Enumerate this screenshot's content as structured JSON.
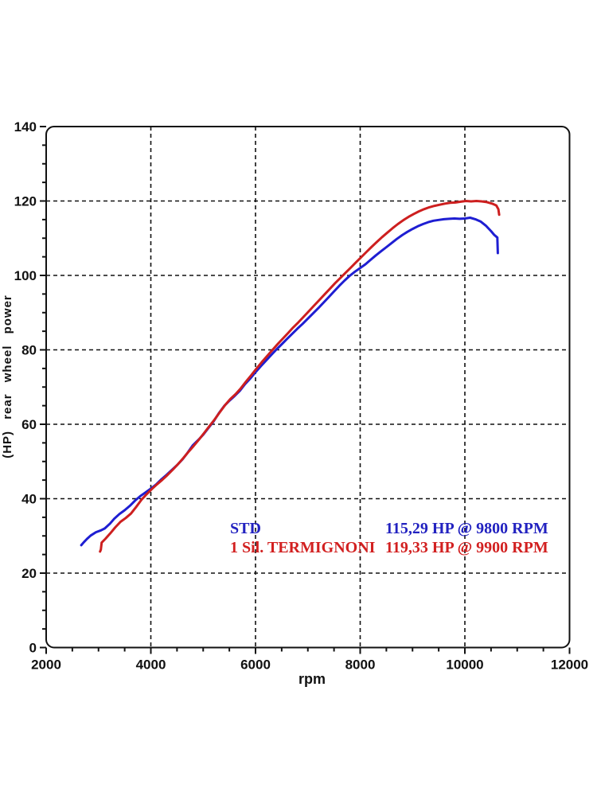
{
  "chart_data": {
    "type": "line",
    "title": "",
    "xlabel": "rpm",
    "ylabel": "(HP) rear wheel power",
    "xlim": [
      2000,
      12000
    ],
    "ylim": [
      0,
      140
    ],
    "x_major_ticks": [
      2000,
      4000,
      6000,
      8000,
      10000,
      12000
    ],
    "x_tick_labels": [
      "2000",
      "4000",
      "6000",
      "8000",
      "10000",
      "12000"
    ],
    "x_minor_step": 500,
    "y_major_ticks": [
      0,
      20,
      40,
      60,
      80,
      100,
      120,
      140
    ],
    "y_tick_labels": [
      "0",
      "20",
      "40",
      "60",
      "80",
      "100",
      "120",
      "140"
    ],
    "y_minor_step": 5,
    "grid": {
      "style": "dashed",
      "color": "#111111",
      "horizontal_at": [
        20,
        40,
        60,
        80,
        100,
        120
      ],
      "vertical_at": [
        4000,
        6000,
        8000,
        10000
      ]
    },
    "legend_position": "inside lower-right",
    "series": [
      {
        "name": "STD",
        "color": "#1e1ed2",
        "peak_label": "115,29 HP @ 9800 RPM",
        "points": [
          [
            2670,
            27.5
          ],
          [
            2720,
            28.3
          ],
          [
            2780,
            29.2
          ],
          [
            2850,
            30.1
          ],
          [
            2950,
            31.0
          ],
          [
            3050,
            31.5
          ],
          [
            3120,
            32.0
          ],
          [
            3220,
            33.3
          ],
          [
            3300,
            34.6
          ],
          [
            3400,
            35.9
          ],
          [
            3500,
            36.9
          ],
          [
            3600,
            38.1
          ],
          [
            3700,
            39.5
          ],
          [
            3800,
            40.7
          ],
          [
            3900,
            41.7
          ],
          [
            4000,
            42.7
          ],
          [
            4100,
            43.8
          ],
          [
            4200,
            45.2
          ],
          [
            4300,
            46.4
          ],
          [
            4400,
            47.7
          ],
          [
            4500,
            49.0
          ],
          [
            4600,
            50.5
          ],
          [
            4700,
            52.3
          ],
          [
            4800,
            54.3
          ],
          [
            4900,
            55.7
          ],
          [
            5000,
            57.2
          ],
          [
            5100,
            59.0
          ],
          [
            5200,
            60.8
          ],
          [
            5300,
            63.0
          ],
          [
            5400,
            64.9
          ],
          [
            5500,
            66.3
          ],
          [
            5600,
            67.6
          ],
          [
            5700,
            69.0
          ],
          [
            5800,
            70.8
          ],
          [
            5900,
            72.3
          ],
          [
            6000,
            74.0
          ],
          [
            6100,
            75.6
          ],
          [
            6200,
            77.1
          ],
          [
            6300,
            78.6
          ],
          [
            6400,
            80.1
          ],
          [
            6500,
            81.5
          ],
          [
            6600,
            82.9
          ],
          [
            6700,
            84.3
          ],
          [
            6800,
            85.7
          ],
          [
            6900,
            87.0
          ],
          [
            7000,
            88.4
          ],
          [
            7100,
            89.8
          ],
          [
            7200,
            91.2
          ],
          [
            7300,
            92.7
          ],
          [
            7400,
            94.2
          ],
          [
            7500,
            95.7
          ],
          [
            7600,
            97.2
          ],
          [
            7700,
            98.6
          ],
          [
            7800,
            99.9
          ],
          [
            7900,
            101.0
          ],
          [
            8000,
            102.0
          ],
          [
            8100,
            103.0
          ],
          [
            8200,
            104.2
          ],
          [
            8300,
            105.4
          ],
          [
            8400,
            106.5
          ],
          [
            8500,
            107.6
          ],
          [
            8600,
            108.7
          ],
          [
            8700,
            109.8
          ],
          [
            8800,
            110.8
          ],
          [
            8900,
            111.7
          ],
          [
            9000,
            112.5
          ],
          [
            9100,
            113.2
          ],
          [
            9200,
            113.8
          ],
          [
            9300,
            114.3
          ],
          [
            9400,
            114.7
          ],
          [
            9500,
            114.9
          ],
          [
            9600,
            115.1
          ],
          [
            9700,
            115.2
          ],
          [
            9800,
            115.3
          ],
          [
            9900,
            115.2
          ],
          [
            10000,
            115.3
          ],
          [
            10100,
            115.5
          ],
          [
            10200,
            115.1
          ],
          [
            10300,
            114.5
          ],
          [
            10400,
            113.4
          ],
          [
            10500,
            111.9
          ],
          [
            10560,
            110.9
          ],
          [
            10610,
            110.3
          ],
          [
            10620,
            110.2
          ],
          [
            10630,
            106.0
          ]
        ]
      },
      {
        "name": "1 Sil. TERMIGNONI",
        "color": "#cd1f1f",
        "peak_label": "119,33 HP @ 9900 RPM",
        "points": [
          [
            3030,
            25.8
          ],
          [
            3045,
            26.3
          ],
          [
            3060,
            28.2
          ],
          [
            3130,
            29.2
          ],
          [
            3220,
            30.6
          ],
          [
            3320,
            32.3
          ],
          [
            3420,
            33.8
          ],
          [
            3520,
            34.8
          ],
          [
            3620,
            36.0
          ],
          [
            3720,
            37.8
          ],
          [
            3820,
            39.7
          ],
          [
            3920,
            41.2
          ],
          [
            4020,
            42.6
          ],
          [
            4120,
            43.9
          ],
          [
            4220,
            45.1
          ],
          [
            4320,
            46.4
          ],
          [
            4420,
            47.8
          ],
          [
            4520,
            49.3
          ],
          [
            4620,
            50.9
          ],
          [
            4720,
            52.6
          ],
          [
            4820,
            54.2
          ],
          [
            4920,
            55.9
          ],
          [
            5020,
            57.7
          ],
          [
            5120,
            59.5
          ],
          [
            5220,
            61.3
          ],
          [
            5320,
            63.3
          ],
          [
            5420,
            65.2
          ],
          [
            5520,
            66.8
          ],
          [
            5620,
            68.1
          ],
          [
            5720,
            69.7
          ],
          [
            5820,
            71.5
          ],
          [
            5920,
            73.2
          ],
          [
            6020,
            75.0
          ],
          [
            6120,
            76.7
          ],
          [
            6220,
            78.3
          ],
          [
            6320,
            79.9
          ],
          [
            6420,
            81.5
          ],
          [
            6520,
            83.0
          ],
          [
            6620,
            84.5
          ],
          [
            6720,
            86.0
          ],
          [
            6820,
            87.4
          ],
          [
            6920,
            88.9
          ],
          [
            7020,
            90.4
          ],
          [
            7120,
            91.9
          ],
          [
            7220,
            93.4
          ],
          [
            7320,
            94.9
          ],
          [
            7420,
            96.4
          ],
          [
            7520,
            97.9
          ],
          [
            7620,
            99.3
          ],
          [
            7720,
            100.7
          ],
          [
            7820,
            102.1
          ],
          [
            7920,
            103.5
          ],
          [
            8020,
            104.9
          ],
          [
            8120,
            106.3
          ],
          [
            8220,
            107.7
          ],
          [
            8320,
            109.0
          ],
          [
            8420,
            110.3
          ],
          [
            8520,
            111.5
          ],
          [
            8620,
            112.7
          ],
          [
            8720,
            113.8
          ],
          [
            8820,
            114.8
          ],
          [
            8920,
            115.7
          ],
          [
            9020,
            116.5
          ],
          [
            9120,
            117.2
          ],
          [
            9220,
            117.8
          ],
          [
            9320,
            118.3
          ],
          [
            9420,
            118.7
          ],
          [
            9520,
            119.0
          ],
          [
            9620,
            119.3
          ],
          [
            9720,
            119.5
          ],
          [
            9820,
            119.6
          ],
          [
            9920,
            119.8
          ],
          [
            10020,
            120.0
          ],
          [
            10120,
            119.9
          ],
          [
            10220,
            120.0
          ],
          [
            10320,
            119.9
          ],
          [
            10420,
            119.7
          ],
          [
            10520,
            119.3
          ],
          [
            10600,
            118.8
          ],
          [
            10640,
            117.8
          ],
          [
            10655,
            116.3
          ]
        ]
      }
    ]
  },
  "axes": {
    "x_label": "rpm",
    "y_label": "(HP) rear wheel power"
  },
  "legend": {
    "rows": [
      {
        "name": "STD",
        "value": "115,29 HP @ 9800 RPM",
        "color": "#2222c0"
      },
      {
        "name": "1 Sil. TERMIGNONI",
        "value": "119,33 HP @ 9900 RPM",
        "color": "#d22020"
      }
    ]
  }
}
